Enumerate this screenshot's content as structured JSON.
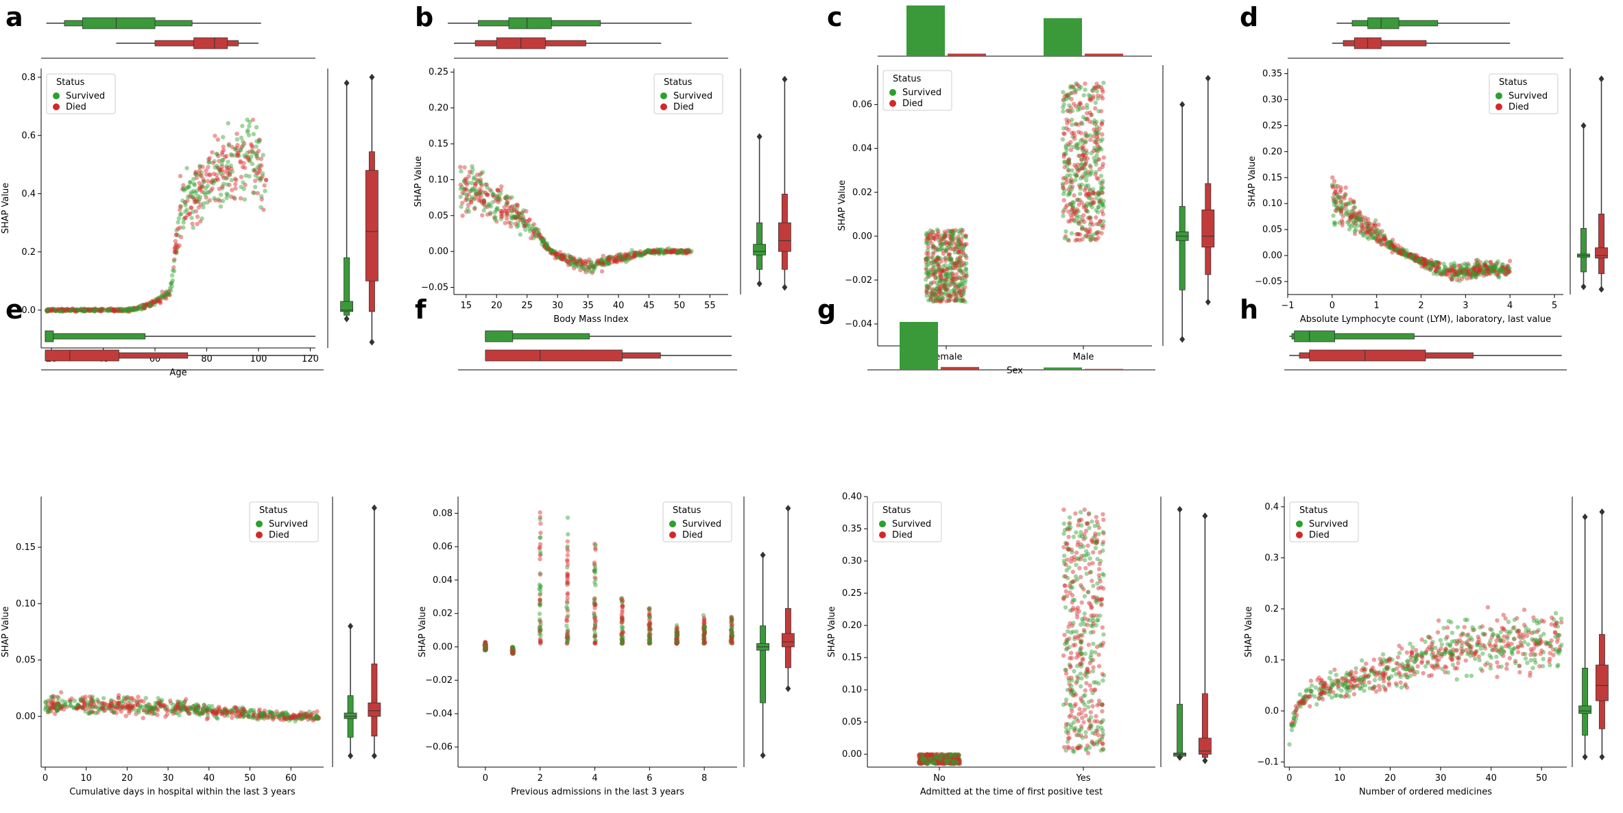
{
  "colors": {
    "survived": "#2ca02c",
    "died": "#d62728",
    "survived_box": "#3a9a3a",
    "died_box": "#c23b3b"
  },
  "legend": {
    "title": "Status",
    "survived": "Survived",
    "died": "Died"
  },
  "chart_data": [
    {
      "letter": "a",
      "type": "scatter",
      "kind": "numeric",
      "xlabel": "Age",
      "ylabel": "SHAP Value",
      "xlim": [
        16,
        122
      ],
      "ylim": [
        -0.13,
        0.83
      ],
      "xticks": [
        20,
        40,
        60,
        80,
        100,
        120
      ],
      "yticks": [
        0.0,
        0.2,
        0.4,
        0.6,
        0.8
      ],
      "ytick_labels": [
        "0.0",
        "0.2",
        "0.4",
        "0.6",
        "0.8"
      ],
      "legend_pos": "top-left",
      "trend": {
        "x": [
          18,
          40,
          50,
          55,
          60,
          66,
          70,
          80,
          90,
          97,
          103
        ],
        "y": [
          0,
          0,
          0,
          0.01,
          0.03,
          0.06,
          0.35,
          0.45,
          0.5,
          0.55,
          0.4
        ],
        "x_min": 18,
        "x_max": 103,
        "spread_base": 0.005,
        "spread_scale": 0.25
      },
      "box_survived": {
        "min": -0.03,
        "q1": -0.005,
        "med": 0.0,
        "q3": 0.03,
        "max": 0.78
      },
      "box_died": {
        "min": -0.11,
        "q1": 0.1,
        "med": 0.27,
        "q3": 0.48,
        "max": 0.8
      },
      "topbox_survived": {
        "min": 18,
        "q1": 32,
        "med": 45,
        "q3": 60,
        "max": 101
      },
      "topbox_died": {
        "min": 45,
        "q1": 75,
        "med": 83,
        "q3": 88,
        "max": 100
      }
    },
    {
      "letter": "b",
      "type": "scatter",
      "kind": "numeric",
      "xlabel": "Body Mass Index",
      "ylabel": "SHAP Value",
      "xlim": [
        13,
        58
      ],
      "ylim": [
        -0.06,
        0.255
      ],
      "xticks": [
        15,
        20,
        25,
        30,
        35,
        40,
        45,
        50,
        55
      ],
      "yticks": [
        -0.05,
        0.0,
        0.05,
        0.1,
        0.15,
        0.2,
        0.25
      ],
      "ytick_labels": [
        "−0.05",
        "0.00",
        "0.05",
        "0.10",
        "0.15",
        "0.20",
        "0.25"
      ],
      "legend_pos": "top-right",
      "trend": {
        "x": [
          14,
          18,
          22,
          26,
          29,
          31,
          35,
          40,
          45,
          52
        ],
        "y": [
          0.09,
          0.08,
          0.06,
          0.03,
          0.0,
          -0.01,
          -0.02,
          -0.01,
          0.0,
          0.0
        ],
        "x_min": 14,
        "x_max": 52,
        "spread_base": 0.003,
        "spread_scale": 0.35
      },
      "box_survived": {
        "min": -0.045,
        "q1": -0.005,
        "med": 0.0,
        "q3": 0.01,
        "max": 0.16
      },
      "box_died": {
        "min": -0.05,
        "q1": 0.0,
        "med": 0.015,
        "q3": 0.04,
        "max": 0.24
      },
      "topbox_survived": {
        "min": 12,
        "q1": 22,
        "med": 25,
        "q3": 29,
        "max": 52
      },
      "topbox_died": {
        "min": 13,
        "q1": 20,
        "med": 24,
        "q3": 28,
        "max": 47
      }
    },
    {
      "letter": "c",
      "type": "scatter",
      "kind": "categorical",
      "xlabel": "Sex",
      "ylabel": "SHAP Value",
      "categories": [
        "Female",
        "Male"
      ],
      "ylim": [
        -0.05,
        0.078
      ],
      "yticks": [
        -0.04,
        -0.02,
        0.0,
        0.02,
        0.04,
        0.06
      ],
      "ytick_labels": [
        "−0.04",
        "−0.02",
        "0.00",
        "0.02",
        "0.04",
        "0.06"
      ],
      "legend_pos": "top-left",
      "strips": [
        {
          "lo": -0.03,
          "hi": 0.003
        },
        {
          "lo": -0.002,
          "hi": 0.07
        }
      ],
      "box_survived": {
        "min": -0.047,
        "q1": -0.002,
        "med": 0.0,
        "q3": 0.002,
        "max": 0.06
      },
      "box_died": {
        "min": -0.03,
        "q1": -0.005,
        "med": 0.0,
        "q3": 0.012,
        "max": 0.072
      },
      "bar_survived": [
        1.0,
        0.75
      ],
      "bar_died": [
        0.05,
        0.05
      ]
    },
    {
      "letter": "d",
      "type": "scatter",
      "kind": "numeric",
      "xlabel": "Absolute Lymphocyte count (LYM), laboratory, last value",
      "ylabel": "SHAP Value",
      "xlim": [
        -1,
        5.2
      ],
      "ylim": [
        -0.075,
        0.36
      ],
      "xticks": [
        -1,
        0,
        1,
        2,
        3,
        4,
        5
      ],
      "yticks": [
        -0.05,
        0.0,
        0.05,
        0.1,
        0.15,
        0.2,
        0.25,
        0.3,
        0.35
      ],
      "ytick_labels": [
        "−0.05",
        "0.00",
        "0.05",
        "0.10",
        "0.15",
        "0.20",
        "0.25",
        "0.30",
        "0.35"
      ],
      "xtick_labels": [
        "−1",
        "0",
        "1",
        "2",
        "3",
        "4",
        "5"
      ],
      "legend_pos": "top-right",
      "trend": {
        "x": [
          0,
          0.5,
          1,
          1.5,
          2,
          2.5,
          3,
          4
        ],
        "y": [
          0.12,
          0.07,
          0.04,
          0.01,
          -0.01,
          -0.03,
          -0.03,
          -0.025
        ],
        "x_min": 0,
        "x_max": 4,
        "spread_base": 0.004,
        "spread_scale": 0.4
      },
      "box_survived": {
        "min": -0.06,
        "q1": -0.003,
        "med": 0.0,
        "q3": 0.003,
        "max": 0.25
      },
      "box_died": {
        "min": -0.065,
        "q1": -0.005,
        "med": 0.0,
        "q3": 0.015,
        "max": 0.34
      },
      "topbox_survived": {
        "min": 0.1,
        "q1": 0.8,
        "med": 1.1,
        "q3": 1.5,
        "max": 4.0
      },
      "topbox_died": {
        "min": 0.0,
        "q1": 0.5,
        "med": 0.8,
        "q3": 1.1,
        "max": 4.0
      }
    },
    {
      "letter": "e",
      "type": "scatter",
      "kind": "numeric",
      "xlabel": "Cumulative days in hospital within the last 3 years",
      "ylabel": "SHAP Value",
      "xlim": [
        -1,
        68
      ],
      "ylim": [
        -0.045,
        0.195
      ],
      "xticks": [
        0,
        10,
        20,
        30,
        40,
        50,
        60
      ],
      "yticks": [
        0.0,
        0.05,
        0.1,
        0.15
      ],
      "ytick_labels": [
        "0.00",
        "0.05",
        "0.10",
        "0.15"
      ],
      "legend_pos": "top-right",
      "trend": {
        "x": [
          0,
          10,
          20,
          30,
          40,
          50,
          60,
          67
        ],
        "y": [
          0.01,
          0.01,
          0.01,
          0.008,
          0.005,
          0.002,
          0.0,
          0.0
        ],
        "x_min": 0,
        "x_max": 67,
        "spread_base": 0.004,
        "spread_scale": 0.4
      },
      "box_survived": {
        "min": -0.035,
        "q1": -0.002,
        "med": 0.0,
        "q3": 0.003,
        "max": 0.08
      },
      "box_died": {
        "min": -0.035,
        "q1": 0.0,
        "med": 0.005,
        "q3": 0.012,
        "max": 0.185
      },
      "topbox_survived": {
        "min": 0,
        "q1": 0,
        "med": 0,
        "q3": 2,
        "max": 66
      },
      "topbox_died": {
        "min": 0,
        "q1": 0,
        "med": 6,
        "q3": 18,
        "max": 66
      }
    },
    {
      "letter": "f",
      "type": "scatter",
      "kind": "discrete",
      "xlabel": "Previous admissions in the last 3 years",
      "ylabel": "SHAP Value",
      "xlim": [
        -1,
        9.2
      ],
      "ylim": [
        -0.072,
        0.09
      ],
      "xticks": [
        0,
        2,
        4,
        6,
        8
      ],
      "yticks": [
        -0.06,
        -0.04,
        -0.02,
        0.0,
        0.02,
        0.04,
        0.06,
        0.08
      ],
      "ytick_labels": [
        "−0.06",
        "−0.04",
        "−0.02",
        "0.00",
        "0.02",
        "0.04",
        "0.06",
        "0.08"
      ],
      "legend_pos": "top-right",
      "columns": [
        {
          "x": 0,
          "lo": -0.002,
          "hi": 0.004
        },
        {
          "x": 1,
          "lo": -0.004,
          "hi": 0.0
        },
        {
          "x": 2,
          "lo": 0.002,
          "hi": 0.082
        },
        {
          "x": 3,
          "lo": 0.002,
          "hi": 0.08
        },
        {
          "x": 4,
          "lo": 0.002,
          "hi": 0.062
        },
        {
          "x": 5,
          "lo": 0.002,
          "hi": 0.03
        },
        {
          "x": 6,
          "lo": 0.002,
          "hi": 0.024
        },
        {
          "x": 7,
          "lo": 0.002,
          "hi": 0.013
        },
        {
          "x": 8,
          "lo": 0.002,
          "hi": 0.02
        },
        {
          "x": 9,
          "lo": 0.002,
          "hi": 0.018
        }
      ],
      "box_survived": {
        "min": -0.065,
        "q1": -0.002,
        "med": 0.0,
        "q3": 0.002,
        "max": 0.055
      },
      "box_died": {
        "min": -0.025,
        "q1": 0.0,
        "med": 0.003,
        "q3": 0.008,
        "max": 0.083
      },
      "topbox_survived": {
        "min": 0,
        "q1": 0,
        "med": 0,
        "q3": 1,
        "max": 9
      },
      "topbox_died": {
        "min": 0,
        "q1": 0,
        "med": 2,
        "q3": 5,
        "max": 9
      }
    },
    {
      "letter": "g",
      "type": "scatter",
      "kind": "categorical",
      "xlabel": "Admitted at the time of first positive test",
      "ylabel": "SHAP Value",
      "categories": [
        "No",
        "Yes"
      ],
      "ylim": [
        -0.02,
        0.4
      ],
      "yticks": [
        0.0,
        0.05,
        0.1,
        0.15,
        0.2,
        0.25,
        0.3,
        0.35,
        0.4
      ],
      "ytick_labels": [
        "0.00",
        "0.05",
        "0.10",
        "0.15",
        "0.20",
        "0.25",
        "0.30",
        "0.35",
        "0.40"
      ],
      "legend_pos": "top-left",
      "strips": [
        {
          "lo": -0.015,
          "hi": 0.0
        },
        {
          "lo": 0.0,
          "hi": 0.38
        }
      ],
      "box_survived": {
        "min": -0.005,
        "q1": -0.003,
        "med": 0.0,
        "q3": 0.002,
        "max": 0.38
      },
      "box_died": {
        "min": -0.01,
        "q1": 0.0,
        "med": 0.005,
        "q3": 0.025,
        "max": 0.37
      },
      "bar_survived": [
        1.0,
        0.05
      ],
      "bar_died": [
        0.06,
        0.02
      ]
    },
    {
      "letter": "h",
      "type": "scatter",
      "kind": "numeric",
      "xlabel": "Number of ordered medicines",
      "ylabel": "SHAP Value",
      "xlim": [
        -1,
        55
      ],
      "ylim": [
        -0.11,
        0.42
      ],
      "xticks": [
        0,
        10,
        20,
        30,
        40,
        50
      ],
      "yticks": [
        -0.1,
        0.0,
        0.1,
        0.2,
        0.3,
        0.4
      ],
      "ytick_labels": [
        "−0.1",
        "0.0",
        "0.1",
        "0.2",
        "0.3",
        "0.4"
      ],
      "legend_pos": "top-left",
      "trend": {
        "x": [
          0,
          2,
          5,
          10,
          20,
          30,
          40,
          50,
          54
        ],
        "y": [
          -0.05,
          0.02,
          0.04,
          0.05,
          0.08,
          0.12,
          0.13,
          0.14,
          0.14
        ],
        "x_min": 0,
        "x_max": 54,
        "spread_base": 0.01,
        "spread_scale": 0.35
      },
      "box_survived": {
        "min": -0.09,
        "q1": -0.005,
        "med": 0.0,
        "q3": 0.01,
        "max": 0.38
      },
      "box_died": {
        "min": -0.09,
        "q1": 0.02,
        "med": 0.05,
        "q3": 0.09,
        "max": 0.39
      },
      "topbox_survived": {
        "min": 0,
        "q1": 1,
        "med": 4,
        "q3": 9,
        "max": 54
      },
      "topbox_died": {
        "min": 0,
        "q1": 4,
        "med": 15,
        "q3": 27,
        "max": 54
      }
    }
  ]
}
